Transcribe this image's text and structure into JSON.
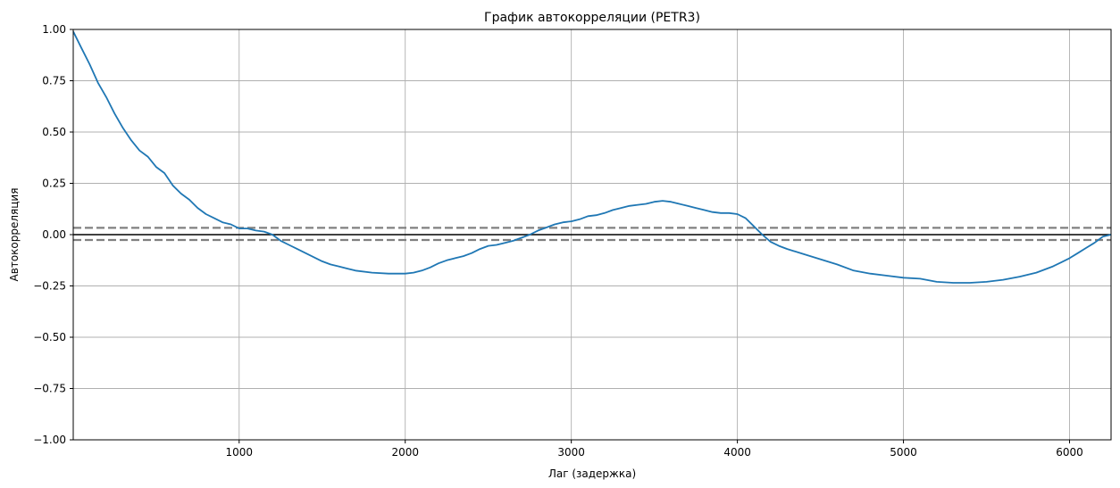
{
  "chart_data": {
    "type": "line",
    "title": "График автокорреляции (PETR3)",
    "xlabel": "Лаг (задержка)",
    "ylabel": "Автокорреляция",
    "xlim": [
      1,
      6250
    ],
    "ylim": [
      -1.0,
      1.0
    ],
    "grid": true,
    "xticks": [
      1000,
      2000,
      3000,
      4000,
      5000,
      6000
    ],
    "xtick_labels": [
      "1000",
      "2000",
      "3000",
      "4000",
      "5000",
      "6000"
    ],
    "yticks": [
      1.0,
      0.75,
      0.5,
      0.25,
      0.0,
      -0.25,
      -0.5,
      -0.75,
      -1.0
    ],
    "ytick_labels": [
      "1.00",
      "0.75",
      "0.50",
      "0.25",
      "0.00",
      "−0.25",
      "−0.50",
      "−0.75",
      "−1.00"
    ],
    "confidence_band": [
      0.033,
      -0.026
    ],
    "zero_line": 0.0,
    "colors": {
      "series": "#1f77b4",
      "band": "#808080",
      "zero": "#000000",
      "grid": "#b0b0b0"
    },
    "series": [
      {
        "x": [
          1,
          50,
          100,
          150,
          200,
          250,
          300,
          350,
          400,
          450,
          500,
          550,
          600,
          650,
          700,
          750,
          800,
          850,
          900,
          950,
          1000,
          1050,
          1100,
          1150,
          1200,
          1250,
          1300,
          1350,
          1400,
          1450,
          1500,
          1550,
          1600,
          1650,
          1700,
          1800,
          1900,
          2000,
          2050,
          2100,
          2150,
          2200,
          2250,
          2300,
          2350,
          2400,
          2450,
          2500,
          2550,
          2600,
          2650,
          2700,
          2750,
          2800,
          2850,
          2900,
          2950,
          3000,
          3050,
          3100,
          3150,
          3200,
          3250,
          3300,
          3350,
          3400,
          3450,
          3500,
          3550,
          3600,
          3650,
          3700,
          3750,
          3800,
          3850,
          3900,
          3950,
          4000,
          4050,
          4100,
          4150,
          4200,
          4250,
          4300,
          4400,
          4500,
          4600,
          4700,
          4800,
          4900,
          5000,
          5100,
          5200,
          5300,
          5400,
          5500,
          5600,
          5700,
          5800,
          5850,
          5900,
          5950,
          6000,
          6050,
          6100,
          6150,
          6200,
          6250
        ],
        "y": [
          0.99,
          0.91,
          0.83,
          0.74,
          0.67,
          0.59,
          0.52,
          0.46,
          0.41,
          0.38,
          0.33,
          0.3,
          0.24,
          0.2,
          0.17,
          0.13,
          0.1,
          0.08,
          0.06,
          0.05,
          0.03,
          0.03,
          0.02,
          0.015,
          0.0,
          -0.03,
          -0.05,
          -0.07,
          -0.09,
          -0.11,
          -0.13,
          -0.145,
          -0.155,
          -0.165,
          -0.175,
          -0.185,
          -0.19,
          -0.19,
          -0.185,
          -0.175,
          -0.16,
          -0.14,
          -0.125,
          -0.115,
          -0.105,
          -0.09,
          -0.07,
          -0.055,
          -0.05,
          -0.04,
          -0.03,
          -0.015,
          0.0,
          0.02,
          0.035,
          0.05,
          0.06,
          0.065,
          0.075,
          0.09,
          0.095,
          0.105,
          0.12,
          0.13,
          0.14,
          0.145,
          0.15,
          0.16,
          0.165,
          0.16,
          0.15,
          0.14,
          0.13,
          0.12,
          0.11,
          0.105,
          0.105,
          0.1,
          0.08,
          0.04,
          0.0,
          -0.035,
          -0.055,
          -0.07,
          -0.095,
          -0.12,
          -0.145,
          -0.175,
          -0.19,
          -0.2,
          -0.21,
          -0.215,
          -0.23,
          -0.235,
          -0.235,
          -0.23,
          -0.22,
          -0.205,
          -0.185,
          -0.17,
          -0.155,
          -0.135,
          -0.115,
          -0.09,
          -0.065,
          -0.04,
          -0.01,
          0.0
        ]
      }
    ]
  }
}
